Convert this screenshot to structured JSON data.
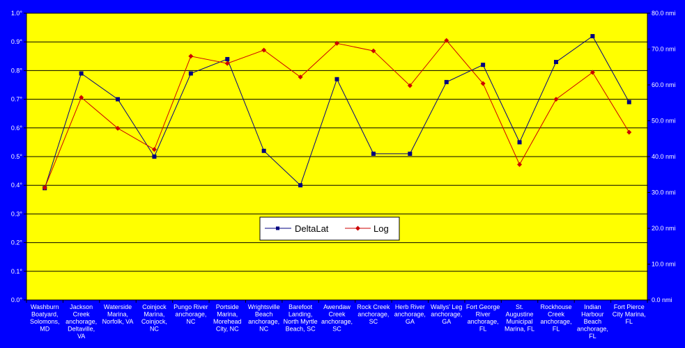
{
  "chart_data": {
    "type": "line",
    "categories": [
      [
        "Washburn",
        "Boatyard,",
        "Solomons,",
        "MD"
      ],
      [
        "Jackson",
        "Creek",
        "anchorage,",
        "Deltaville,",
        "VA"
      ],
      [
        "Waterside",
        "Marina,",
        "Norfolk, VA"
      ],
      [
        "Coinjock",
        "Marina,",
        "Coinjock,",
        "NC"
      ],
      [
        "Pungo River",
        "anchorage,",
        "NC"
      ],
      [
        "Portside",
        "Marina,",
        "Morehead",
        "City, NC"
      ],
      [
        "Wrightsville",
        "Beach",
        "anchorage,",
        "NC"
      ],
      [
        "Barefoot",
        "Landing,",
        "North Myrtle",
        "Beach, SC"
      ],
      [
        "Awendaw",
        "Creek",
        "anchorage,",
        "SC"
      ],
      [
        "Rock Creek",
        "anchorage,",
        "SC"
      ],
      [
        "Herb River",
        "anchorage,",
        "GA"
      ],
      [
        "Wallys' Leg",
        "anchorage,",
        "GA"
      ],
      [
        "Fort George",
        "River",
        "anchorage,",
        "FL"
      ],
      [
        "St.",
        "Augustine",
        "Municipal",
        "Marina, FL"
      ],
      [
        "Rockhouse",
        "Creek",
        "anchorage,",
        "FL"
      ],
      [
        "Indian",
        "Harbour",
        "Beach",
        "anchorage,",
        "FL"
      ],
      [
        "Fort Pierce",
        "City Marina,",
        "FL"
      ]
    ],
    "series": [
      {
        "name": "DeltaLat",
        "axis": "left",
        "color": "#000080",
        "marker": "square",
        "values": [
          0.39,
          0.79,
          0.7,
          0.5,
          0.79,
          0.84,
          0.52,
          0.4,
          0.77,
          0.51,
          0.51,
          0.76,
          0.82,
          0.55,
          0.83,
          0.92,
          0.69
        ]
      },
      {
        "name": "Log",
        "axis": "right",
        "color": "#cc0000",
        "marker": "diamond",
        "values": [
          31.3,
          56.5,
          47.9,
          42.0,
          68.0,
          66.0,
          69.7,
          62.2,
          71.6,
          69.5,
          59.8,
          72.4,
          60.4,
          37.8,
          56.0,
          63.5,
          46.8
        ]
      }
    ],
    "left_axis": {
      "ylim": [
        0,
        1.0
      ],
      "ticks": [
        "0.0°",
        "0.1°",
        "0.2°",
        "0.3°",
        "0.4°",
        "0.5°",
        "0.6°",
        "0.7°",
        "0.8°",
        "0.9°",
        "1.0°"
      ]
    },
    "right_axis": {
      "ylim": [
        0,
        80
      ],
      "ticks": [
        "0.0 nmi",
        "10.0 nmi",
        "20.0 nmi",
        "30.0 nmi",
        "40.0 nmi",
        "50.0 nmi",
        "60.0 nmi",
        "70.0 nmi",
        "80.0 nmi"
      ]
    },
    "grid": true,
    "plot_background": "#ffff00",
    "page_background": "#0000ff",
    "legend_placement": "bottom-center"
  }
}
